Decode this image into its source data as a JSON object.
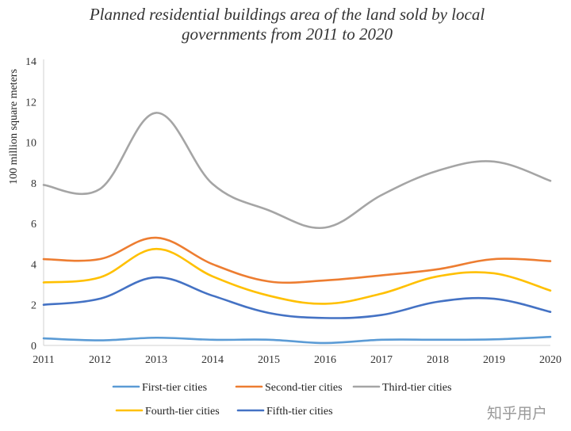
{
  "chart_data": {
    "type": "line",
    "title_lines": [
      "Planned residential buildings area of the land sold by local",
      "governments from 2011 to 2020"
    ],
    "ylabel": "100 million square meters",
    "xlabel": "",
    "categories": [
      "2011",
      "2012",
      "2013",
      "2014",
      "2015",
      "2016",
      "2017",
      "2018",
      "2019",
      "2020"
    ],
    "ylim": [
      0,
      14
    ],
    "yticks": [
      0,
      2,
      4,
      6,
      8,
      10,
      12,
      14
    ],
    "grid": false,
    "smooth": true,
    "legend_position": "bottom",
    "series": [
      {
        "name": "First-tier cities",
        "color": "#5b9bd5",
        "values": [
          0.35,
          0.25,
          0.38,
          0.28,
          0.28,
          0.12,
          0.28,
          0.28,
          0.3,
          0.42
        ]
      },
      {
        "name": "Second-tier cities",
        "color": "#ed7d31",
        "values": [
          4.25,
          4.25,
          5.3,
          4.0,
          3.15,
          3.2,
          3.45,
          3.75,
          4.25,
          4.15
        ]
      },
      {
        "name": "Third-tier cities",
        "color": "#a5a5a5",
        "values": [
          7.9,
          7.7,
          11.45,
          7.95,
          6.65,
          5.8,
          7.4,
          8.6,
          9.05,
          8.1
        ]
      },
      {
        "name": "Fourth-tier cities",
        "color": "#ffc000",
        "values": [
          3.1,
          3.35,
          4.75,
          3.4,
          2.45,
          2.05,
          2.55,
          3.4,
          3.55,
          2.7
        ]
      },
      {
        "name": "Fifth-tier cities",
        "color": "#4472c4",
        "values": [
          2.0,
          2.3,
          3.35,
          2.45,
          1.6,
          1.35,
          1.5,
          2.15,
          2.3,
          1.65
        ]
      }
    ]
  },
  "watermark": "知乎用户"
}
